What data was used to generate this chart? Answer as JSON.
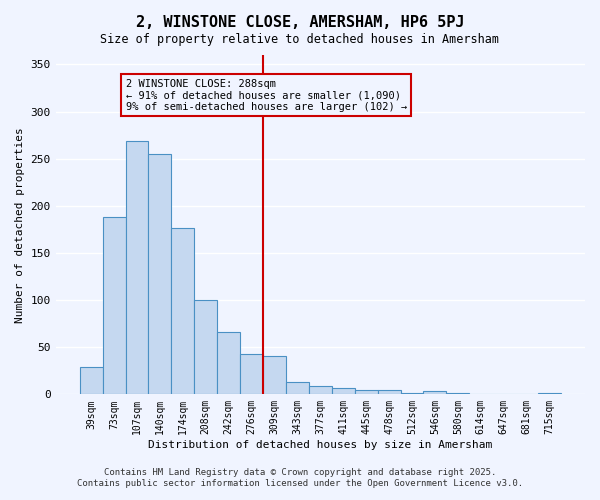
{
  "title": "2, WINSTONE CLOSE, AMERSHAM, HP6 5PJ",
  "subtitle": "Size of property relative to detached houses in Amersham",
  "xlabel": "Distribution of detached houses by size in Amersham",
  "ylabel": "Number of detached properties",
  "categories": [
    "39sqm",
    "73sqm",
    "107sqm",
    "140sqm",
    "174sqm",
    "208sqm",
    "242sqm",
    "276sqm",
    "309sqm",
    "343sqm",
    "377sqm",
    "411sqm",
    "445sqm",
    "478sqm",
    "512sqm",
    "546sqm",
    "580sqm",
    "614sqm",
    "647sqm",
    "681sqm",
    "715sqm"
  ],
  "values": [
    29,
    188,
    269,
    255,
    176,
    100,
    66,
    43,
    41,
    13,
    9,
    7,
    5,
    5,
    1,
    4,
    1,
    0,
    0,
    0,
    1
  ],
  "bar_color": "#c5d8f0",
  "bar_edge_color": "#4a90c4",
  "vline_x": 7.5,
  "vline_color": "#cc0000",
  "annotation_title": "2 WINSTONE CLOSE: 288sqm",
  "annotation_line1": "← 91% of detached houses are smaller (1,090)",
  "annotation_line2": "9% of semi-detached houses are larger (102) →",
  "annotation_box_color": "#cc0000",
  "ylim": [
    0,
    360
  ],
  "yticks": [
    0,
    50,
    100,
    150,
    200,
    250,
    300,
    350
  ],
  "background_color": "#f0f4ff",
  "grid_color": "#ffffff",
  "footnote1": "Contains HM Land Registry data © Crown copyright and database right 2025.",
  "footnote2": "Contains public sector information licensed under the Open Government Licence v3.0."
}
